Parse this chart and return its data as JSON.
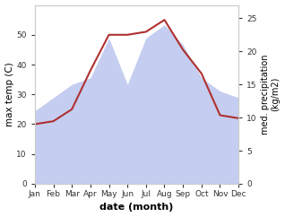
{
  "months": [
    "Jan",
    "Feb",
    "Mar",
    "Apr",
    "May",
    "Jun",
    "Jul",
    "Aug",
    "Sep",
    "Oct",
    "Nov",
    "Dec"
  ],
  "month_positions": [
    1,
    2,
    3,
    4,
    5,
    6,
    7,
    8,
    9,
    10,
    11,
    12
  ],
  "max_temp": [
    20.0,
    21.0,
    25.0,
    38.0,
    50.0,
    50.0,
    51.0,
    55.0,
    45.0,
    37.0,
    23.0,
    22.0
  ],
  "precipitation": [
    11.0,
    13.0,
    15.0,
    16.0,
    22.0,
    15.0,
    22.0,
    24.0,
    21.0,
    16.0,
    14.0,
    13.0
  ],
  "temp_color": "#b03030",
  "precip_color": "#c5cdf0",
  "left_ylim": [
    0,
    60
  ],
  "right_ylim": [
    0,
    27
  ],
  "left_yticks": [
    0,
    10,
    20,
    30,
    40,
    50
  ],
  "right_yticks": [
    0,
    5,
    10,
    15,
    20,
    25
  ],
  "ylabel_left": "max temp (C)",
  "ylabel_right": "med. precipitation\n(kg/m2)",
  "xlabel": "date (month)",
  "bg_color": "#ffffff"
}
